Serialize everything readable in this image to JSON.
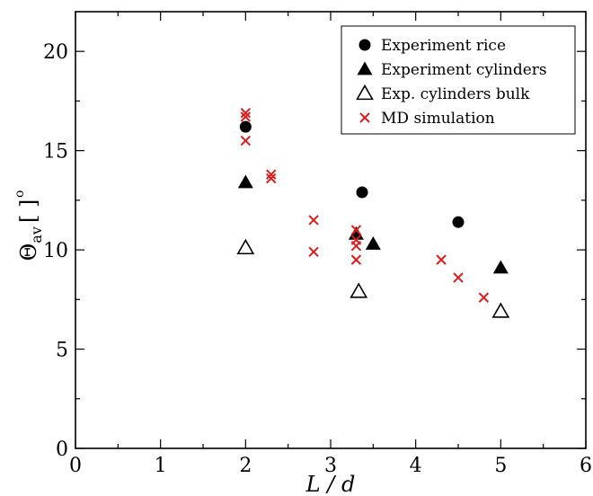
{
  "chart_data": {
    "type": "scatter",
    "xlabel": "L / d",
    "ylabel": {
      "main": "Θ",
      "sub": "av",
      "unit": "[ ]",
      "sup": "o"
    },
    "xlim": [
      0,
      6
    ],
    "ylim": [
      0,
      22
    ],
    "xticks": [
      "0",
      "1",
      "2",
      "3",
      "4",
      "5",
      "6"
    ],
    "xtick_values": [
      0,
      1,
      2,
      3,
      4,
      5,
      6
    ],
    "yticks": [
      "0",
      "5",
      "10",
      "15",
      "20"
    ],
    "ytick_values": [
      0,
      5,
      10,
      15,
      20
    ],
    "grid": false,
    "legend_position": "top-right",
    "series": [
      {
        "name": "Experiment rice",
        "marker": "filled-circle",
        "color": "#000000",
        "points": [
          [
            2.0,
            16.2
          ],
          [
            3.37,
            12.9
          ],
          [
            4.5,
            11.4
          ]
        ]
      },
      {
        "name": "Experiment cylinders",
        "marker": "filled-triangle",
        "color": "#000000",
        "points": [
          [
            2.0,
            13.4
          ],
          [
            3.3,
            10.8
          ],
          [
            3.5,
            10.3
          ],
          [
            5.0,
            9.1
          ]
        ]
      },
      {
        "name": "Exp. cylinders bulk",
        "marker": "open-triangle",
        "color": "#000000",
        "points": [
          [
            2.0,
            10.1
          ],
          [
            3.33,
            7.9
          ],
          [
            5.0,
            6.9
          ]
        ]
      },
      {
        "name": "MD simulation",
        "marker": "x",
        "color": "#e01b1b",
        "points": [
          [
            2.0,
            16.9
          ],
          [
            2.0,
            16.7
          ],
          [
            2.0,
            15.5
          ],
          [
            2.3,
            13.8
          ],
          [
            2.3,
            13.6
          ],
          [
            2.8,
            11.5
          ],
          [
            2.8,
            9.9
          ],
          [
            3.3,
            11.0
          ],
          [
            3.3,
            10.5
          ],
          [
            3.3,
            10.2
          ],
          [
            3.3,
            9.5
          ],
          [
            4.3,
            9.5
          ],
          [
            4.5,
            8.6
          ],
          [
            4.8,
            7.6
          ]
        ]
      }
    ]
  }
}
